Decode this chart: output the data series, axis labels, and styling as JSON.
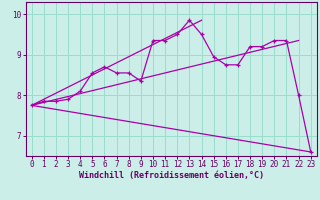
{
  "title": "",
  "xlabel": "Windchill (Refroidissement éolien,°C)",
  "ylabel": "",
  "xlim": [
    -0.5,
    23.5
  ],
  "ylim": [
    6.5,
    10.3
  ],
  "yticks": [
    7,
    8,
    9,
    10
  ],
  "xticks": [
    0,
    1,
    2,
    3,
    4,
    5,
    6,
    7,
    8,
    9,
    10,
    11,
    12,
    13,
    14,
    15,
    16,
    17,
    18,
    19,
    20,
    21,
    22,
    23
  ],
  "bg_color": "#cceee8",
  "grid_color": "#99ddcc",
  "line_color": "#aa00aa",
  "line1_x": [
    0,
    1,
    2,
    3,
    4,
    5,
    6,
    7,
    8,
    9,
    10,
    11,
    12,
    13,
    14,
    15,
    16,
    17,
    18,
    19,
    20,
    21,
    22,
    23
  ],
  "line1_y": [
    7.75,
    7.85,
    7.85,
    7.9,
    8.1,
    8.55,
    8.7,
    8.55,
    8.55,
    8.35,
    9.35,
    9.35,
    9.5,
    9.85,
    9.5,
    8.95,
    8.75,
    8.75,
    9.2,
    9.2,
    9.35,
    9.35,
    8.0,
    6.6
  ],
  "line2_x": [
    0,
    22
  ],
  "line2_y": [
    7.75,
    9.35
  ],
  "line3_x": [
    0,
    23
  ],
  "line3_y": [
    7.75,
    6.6
  ],
  "line4_x": [
    0,
    14
  ],
  "line4_y": [
    7.75,
    9.85
  ],
  "tick_fontsize": 5.5,
  "xlabel_fontsize": 6.0
}
